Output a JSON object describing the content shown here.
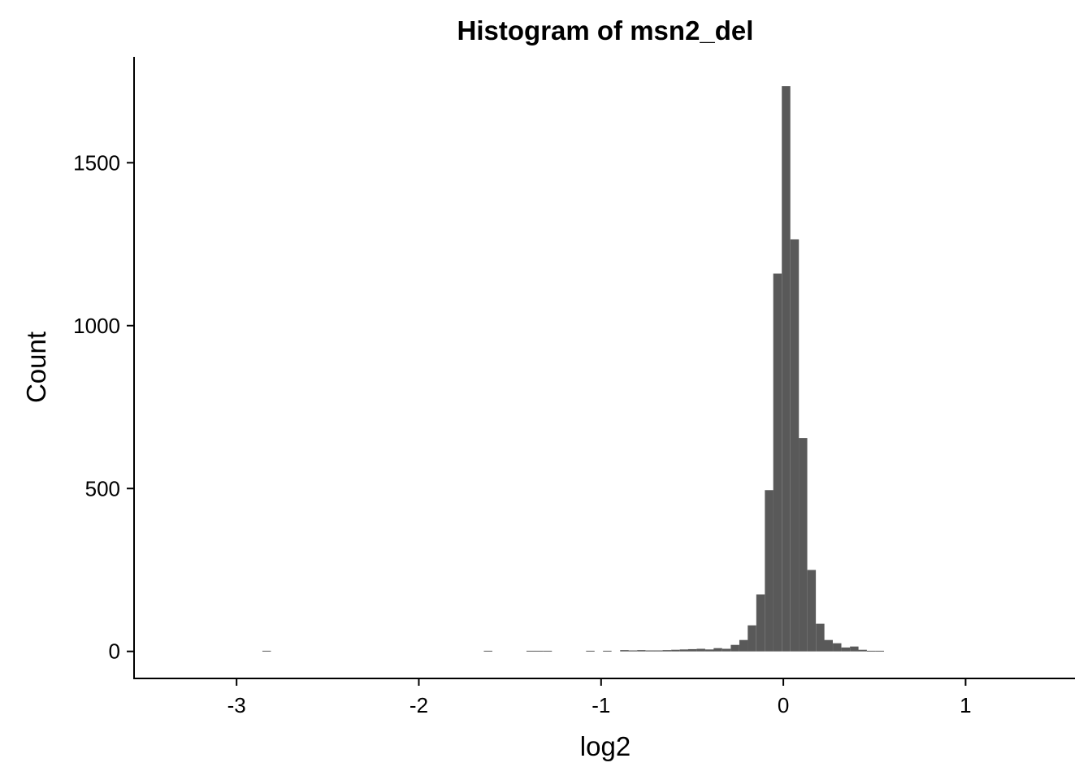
{
  "chart_data": {
    "type": "bar",
    "title": "Histogram of msn2_del",
    "xlabel": "log2",
    "ylabel": "Count",
    "xlim": [
      -3.5625,
      1.6
    ],
    "ylim": [
      -83,
      1825
    ],
    "x_ticks": [
      {
        "value": -3,
        "label": "-3"
      },
      {
        "value": -2,
        "label": "-2"
      },
      {
        "value": -1,
        "label": "-1"
      },
      {
        "value": 0,
        "label": "0"
      },
      {
        "value": 1,
        "label": "1"
      }
    ],
    "y_ticks": [
      {
        "value": 0,
        "label": "0"
      },
      {
        "value": 500,
        "label": "500"
      },
      {
        "value": 1000,
        "label": "1000"
      },
      {
        "value": 1500,
        "label": "1500"
      }
    ],
    "bin_width": 0.0467,
    "bar_color": "#595959",
    "grid": false,
    "legend": "none",
    "bins": [
      {
        "x": -2.835,
        "count": 2
      },
      {
        "x": -1.62,
        "count": 2
      },
      {
        "x": -1.386,
        "count": 2
      },
      {
        "x": -1.34,
        "count": 2
      },
      {
        "x": -1.293,
        "count": 2
      },
      {
        "x": -1.059,
        "count": 2
      },
      {
        "x": -0.966,
        "count": 2
      },
      {
        "x": -0.872,
        "count": 4
      },
      {
        "x": -0.826,
        "count": 3
      },
      {
        "x": -0.779,
        "count": 4
      },
      {
        "x": -0.732,
        "count": 3
      },
      {
        "x": -0.686,
        "count": 3
      },
      {
        "x": -0.639,
        "count": 4
      },
      {
        "x": -0.592,
        "count": 5
      },
      {
        "x": -0.545,
        "count": 6
      },
      {
        "x": -0.499,
        "count": 7
      },
      {
        "x": -0.452,
        "count": 8
      },
      {
        "x": -0.405,
        "count": 6
      },
      {
        "x": -0.359,
        "count": 10
      },
      {
        "x": -0.312,
        "count": 8
      },
      {
        "x": -0.265,
        "count": 20
      },
      {
        "x": -0.218,
        "count": 35
      },
      {
        "x": -0.172,
        "count": 80
      },
      {
        "x": -0.125,
        "count": 175
      },
      {
        "x": -0.078,
        "count": 495
      },
      {
        "x": -0.032,
        "count": 1160
      },
      {
        "x": 0.015,
        "count": 1735
      },
      {
        "x": 0.062,
        "count": 1265
      },
      {
        "x": 0.108,
        "count": 655
      },
      {
        "x": 0.155,
        "count": 250
      },
      {
        "x": 0.202,
        "count": 85
      },
      {
        "x": 0.248,
        "count": 35
      },
      {
        "x": 0.295,
        "count": 25
      },
      {
        "x": 0.342,
        "count": 12
      },
      {
        "x": 0.389,
        "count": 15
      },
      {
        "x": 0.435,
        "count": 5
      },
      {
        "x": 0.482,
        "count": 2
      },
      {
        "x": 0.529,
        "count": 2
      }
    ]
  }
}
